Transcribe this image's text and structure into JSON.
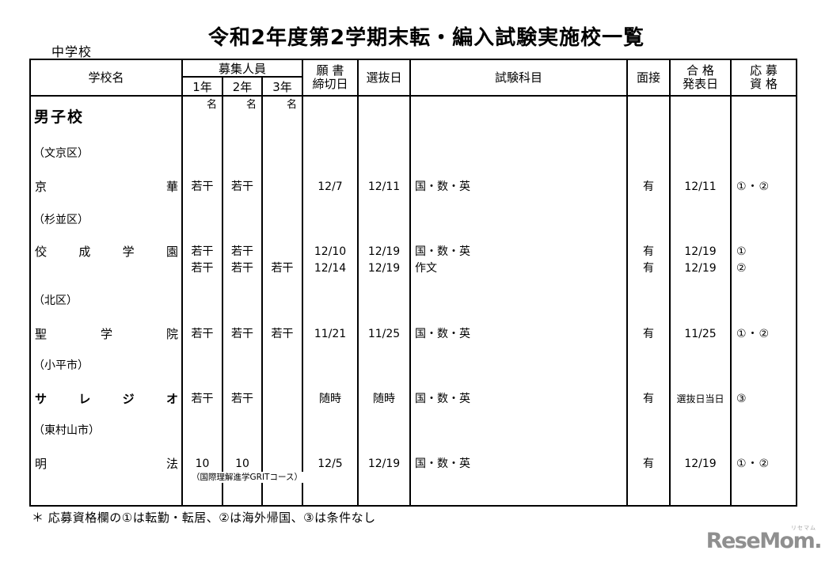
{
  "page": {
    "title": "令和2年度第2学期末転・編入試験実施校一覧",
    "school_level": "中学校"
  },
  "header": {
    "school_name": "学校名",
    "recruits_group": "募集人員",
    "grade1": "1年",
    "grade2": "2年",
    "grade3": "3年",
    "unit": "名",
    "deadline_line1": "願 書",
    "deadline_line2": "締切日",
    "selection": "選抜日",
    "subjects": "試験科目",
    "interview": "面接",
    "announce_line1": "合 格",
    "announce_line2": "発表日",
    "qual_line1": "応 募",
    "qual_line2": "資 格"
  },
  "body": {
    "section": "男子校",
    "rows": [
      {
        "district": "（文京区）",
        "school": "京華",
        "g1": "若干",
        "g2": "若干",
        "g3": "",
        "deadline": "12/7",
        "selection": "12/11",
        "subjects": "国・数・英",
        "interview": "有",
        "announcement": "12/11",
        "qualification": "①・②"
      },
      {
        "district": "（杉並区）",
        "school": "佼成学園",
        "g1": "若干",
        "g2": "若干",
        "g3": "",
        "deadline": "12/10",
        "selection": "12/19",
        "subjects": "国・数・英",
        "interview": "有",
        "announcement": "12/19",
        "qualification": "①",
        "line2": {
          "g1": "若干",
          "g2": "若干",
          "g3": "若干",
          "deadline": "12/14",
          "selection": "12/19",
          "subjects": "作文",
          "interview": "有",
          "announcement": "12/19",
          "qualification": "②"
        }
      },
      {
        "district": "（北区）",
        "school": "聖学院",
        "g1": "若干",
        "g2": "若干",
        "g3": "若干",
        "deadline": "11/21",
        "selection": "11/25",
        "subjects": "国・数・英",
        "interview": "有",
        "announcement": "11/25",
        "qualification": "①・②"
      },
      {
        "district": "（小平市）",
        "school": "サレジオ",
        "g1": "若干",
        "g2": "若干",
        "g3": "",
        "deadline": "随時",
        "selection": "随時",
        "subjects": "国・数・英",
        "interview": "有",
        "announcement": "選抜日当日",
        "qualification": "③"
      },
      {
        "district": "（東村山市）",
        "school": "明法",
        "g1": "10",
        "g2": "10",
        "g3": "",
        "g2_note": "（国際理解進学GRITコース）",
        "deadline": "12/5",
        "selection": "12/19",
        "subjects": "国・数・英",
        "interview": "有",
        "announcement": "12/19",
        "qualification": "①・②"
      }
    ]
  },
  "footnote": "＊ 応募資格欄の①は転勤・転居、②は海外帰国、③は条件なし",
  "logo": {
    "text": "ReseMom.",
    "ruby": "リセマム"
  }
}
